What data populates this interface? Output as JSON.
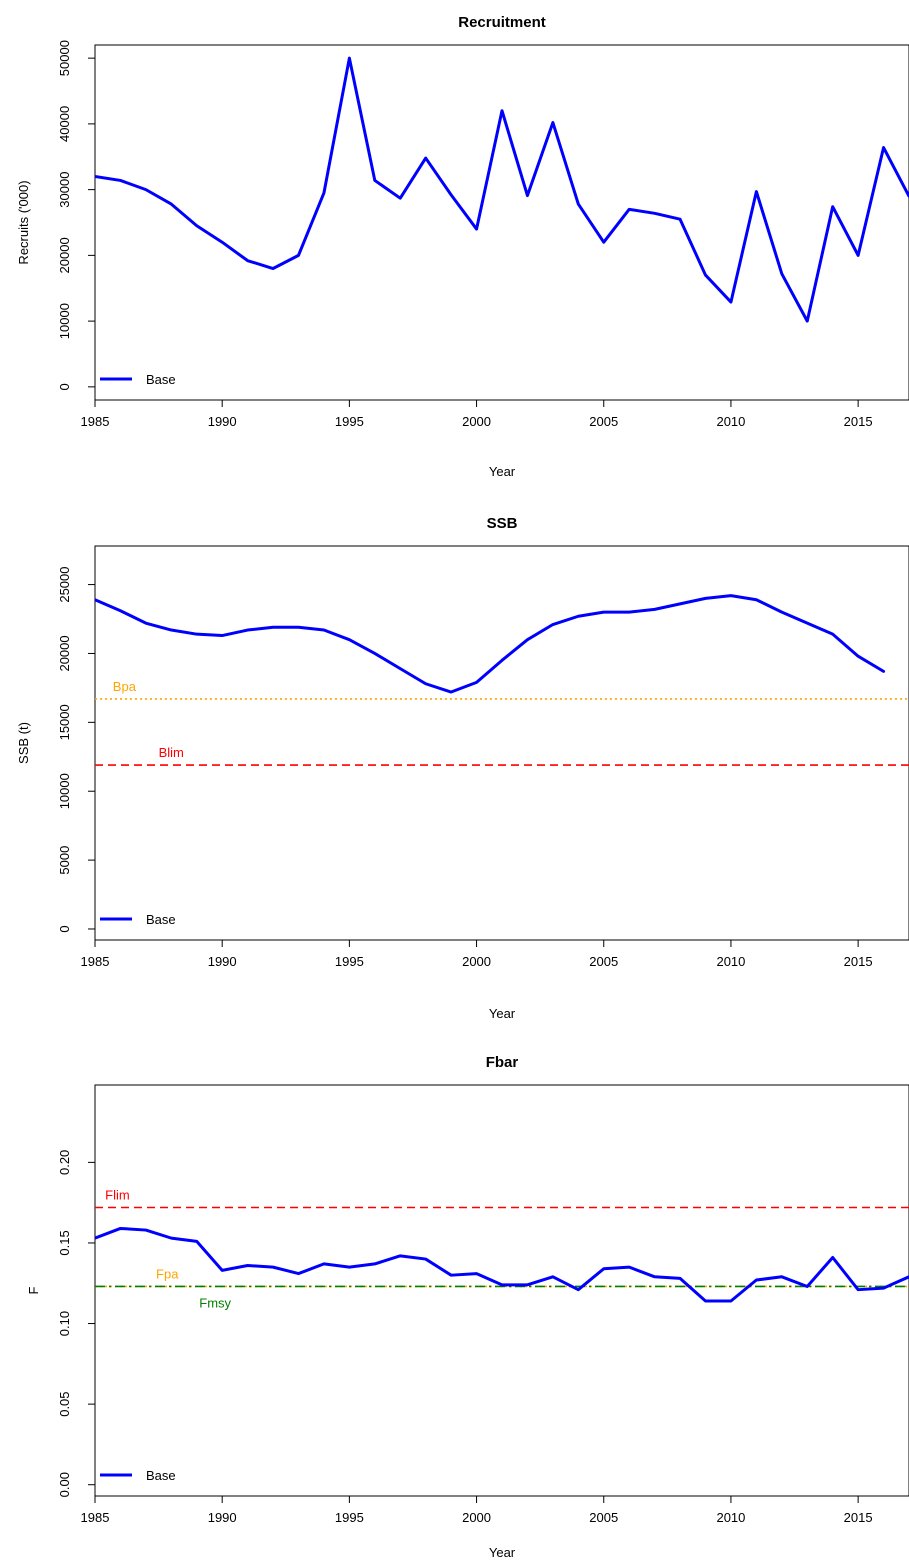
{
  "chart_data": [
    {
      "type": "line",
      "title": "Recruitment",
      "xlabel": "Year",
      "ylabel": "Recruits ('000)",
      "xlim": [
        1985,
        2017
      ],
      "ylim": [
        -2000,
        52000
      ],
      "x_ticks": [
        1985,
        1990,
        1995,
        2000,
        2005,
        2010,
        2015
      ],
      "y_ticks": [
        0,
        10000,
        20000,
        30000,
        40000,
        50000
      ],
      "legend": {
        "position": "bottom-left",
        "entries": [
          "Base"
        ]
      },
      "series": [
        {
          "name": "Base",
          "color": "#0000ff",
          "x": [
            1985,
            1986,
            1987,
            1988,
            1989,
            1990,
            1991,
            1992,
            1993,
            1994,
            1995,
            1996,
            1997,
            1998,
            1999,
            2000,
            2001,
            2002,
            2003,
            2004,
            2005,
            2006,
            2007,
            2008,
            2009,
            2010,
            2011,
            2012,
            2013,
            2014,
            2015,
            2016,
            2017
          ],
          "values": [
            32000,
            31400,
            30000,
            27800,
            24500,
            22000,
            19200,
            18000,
            20000,
            29500,
            50000,
            31400,
            28700,
            34800,
            29200,
            24000,
            42000,
            29100,
            40200,
            27800,
            22000,
            27000,
            26400,
            25500,
            17000,
            12900,
            29700,
            17200,
            10000,
            27400,
            20000,
            36400,
            29000
          ]
        }
      ],
      "reference_lines": []
    },
    {
      "type": "line",
      "title": "SSB",
      "xlabel": "Year",
      "ylabel": "SSB (t)",
      "xlim": [
        1985,
        2017
      ],
      "ylim": [
        -800,
        27800
      ],
      "x_ticks": [
        1985,
        1990,
        1995,
        2000,
        2005,
        2010,
        2015
      ],
      "y_ticks": [
        0,
        5000,
        10000,
        15000,
        20000,
        25000
      ],
      "legend": {
        "position": "bottom-left",
        "entries": [
          "Base"
        ]
      },
      "series": [
        {
          "name": "Base",
          "color": "#0000ff",
          "x": [
            1985,
            1986,
            1987,
            1988,
            1989,
            1990,
            1991,
            1992,
            1993,
            1994,
            1995,
            1996,
            1997,
            1998,
            1999,
            2000,
            2001,
            2002,
            2003,
            2004,
            2005,
            2006,
            2007,
            2008,
            2009,
            2010,
            2011,
            2012,
            2013,
            2014,
            2015,
            2016
          ],
          "values": [
            23900,
            23100,
            22200,
            21700,
            21400,
            21300,
            21700,
            21900,
            21900,
            21700,
            21000,
            20000,
            18900,
            17800,
            17200,
            17900,
            19500,
            21000,
            22100,
            22700,
            23000,
            23000,
            23200,
            23600,
            24000,
            24200,
            23900,
            23000,
            22200,
            21400,
            19800,
            18700
          ]
        }
      ],
      "reference_lines": [
        {
          "label": "Bpa",
          "value": 16700,
          "color": "#ffa500",
          "style": "dotted",
          "label_year": 1985.7
        },
        {
          "label": "Blim",
          "value": 11900,
          "color": "#ff0000",
          "style": "dashed",
          "label_year": 1987.5
        }
      ]
    },
    {
      "type": "line",
      "title": "Fbar",
      "xlabel": "Year",
      "ylabel": "F",
      "xlim": [
        1985,
        2017
      ],
      "ylim": [
        -0.007,
        0.248
      ],
      "x_ticks": [
        1985,
        1990,
        1995,
        2000,
        2005,
        2010,
        2015
      ],
      "y_ticks": [
        0.0,
        0.05,
        0.1,
        0.15,
        0.2
      ],
      "y_tick_labels": [
        "0.00",
        "0.05",
        "0.10",
        "0.15",
        "0.20"
      ],
      "legend": {
        "position": "bottom-left",
        "entries": [
          "Base"
        ]
      },
      "series": [
        {
          "name": "Base",
          "color": "#0000ff",
          "x": [
            1985,
            1986,
            1987,
            1988,
            1989,
            1990,
            1991,
            1992,
            1993,
            1994,
            1995,
            1996,
            1997,
            1998,
            1999,
            2000,
            2001,
            2002,
            2003,
            2004,
            2005,
            2006,
            2007,
            2008,
            2009,
            2010,
            2011,
            2012,
            2013,
            2014,
            2015,
            2016,
            2017
          ],
          "values": [
            0.153,
            0.159,
            0.158,
            0.153,
            0.151,
            0.133,
            0.136,
            0.135,
            0.131,
            0.137,
            0.135,
            0.137,
            0.142,
            0.14,
            0.13,
            0.131,
            0.124,
            0.124,
            0.129,
            0.121,
            0.134,
            0.135,
            0.129,
            0.128,
            0.114,
            0.114,
            0.127,
            0.129,
            0.123,
            0.141,
            0.121,
            0.122,
            0.129
          ]
        }
      ],
      "reference_lines": [
        {
          "label": "Flim",
          "value": 0.172,
          "color": "#ff0000",
          "style": "dashed",
          "label_year": 1985.4
        },
        {
          "label": "Fpa",
          "value": 0.123,
          "color": "#ffa500",
          "style": "dotted",
          "label_year": 1987.4
        },
        {
          "label": "Fmsy",
          "value": 0.123,
          "color": "#008000",
          "style": "dashdot",
          "label_year": 1989.1,
          "label_below": true
        }
      ]
    }
  ]
}
